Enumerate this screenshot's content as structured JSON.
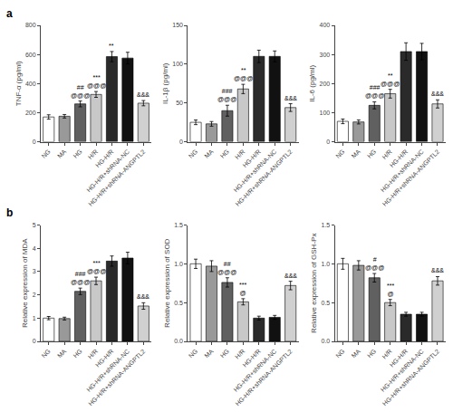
{
  "chart_data": [
    {
      "type": "bar",
      "title": "a",
      "ylabel": "TNF-α (pg/ml)",
      "categories": [
        "NG",
        "MA",
        "HG",
        "H/R",
        "HG-H/R",
        "HG-H/R+shRNA-NC",
        "HG-H/R+shRNA-ANGPTL2"
      ],
      "values": [
        170,
        175,
        260,
        325,
        585,
        575,
        265
      ],
      "errors": [
        15,
        12,
        20,
        20,
        35,
        40,
        18
      ],
      "colors": [
        "#ffffff",
        "#999999",
        "#606060",
        "#c8c8c8",
        "#2a2a2a",
        "#111111",
        "#d0d0d0"
      ],
      "ylim": [
        0,
        800
      ],
      "yticks": [
        0,
        200,
        400,
        600,
        800
      ],
      "grid": false,
      "annotations": [
        {
          "category": "HG",
          "lines": [
            "##",
            "@@@"
          ]
        },
        {
          "category": "H/R",
          "lines": [
            "***",
            "@@@"
          ]
        },
        {
          "category": "HG-H/R",
          "lines": [
            "**"
          ]
        },
        {
          "category": "HG-H/R+shRNA-ANGPTL2",
          "lines": [
            "&&&"
          ]
        }
      ]
    },
    {
      "type": "bar",
      "ylabel": "IL-1β (pg/ml)",
      "categories": [
        "NG",
        "MA",
        "HG",
        "H/R",
        "HG-H/R",
        "HG-H/R+shRNA-NC",
        "HG-H/R+shRNA-ANGPTL2"
      ],
      "values": [
        25,
        23,
        40,
        68,
        110,
        110,
        44
      ],
      "errors": [
        3,
        3,
        7,
        6,
        8,
        7,
        5
      ],
      "colors": [
        "#ffffff",
        "#999999",
        "#606060",
        "#c8c8c8",
        "#2a2a2a",
        "#111111",
        "#d0d0d0"
      ],
      "ylim": [
        0,
        150
      ],
      "yticks": [
        0,
        50,
        100,
        150
      ],
      "grid": false,
      "annotations": [
        {
          "category": "HG",
          "lines": [
            "###",
            "@@@"
          ]
        },
        {
          "category": "H/R",
          "lines": [
            "**",
            "@@@"
          ]
        },
        {
          "category": "HG-H/R+shRNA-ANGPTL2",
          "lines": [
            "&&&"
          ]
        }
      ]
    },
    {
      "type": "bar",
      "ylabel": "IL-6 (pg/ml)",
      "categories": [
        "NG",
        "MA",
        "HG",
        "H/R",
        "HG-H/R",
        "HG-H/R+shRNA-NC",
        "HG-H/R+shRNA-ANGPTL2"
      ],
      "values": [
        70,
        68,
        125,
        165,
        310,
        310,
        130
      ],
      "errors": [
        8,
        7,
        12,
        15,
        30,
        28,
        14
      ],
      "colors": [
        "#ffffff",
        "#999999",
        "#606060",
        "#c8c8c8",
        "#2a2a2a",
        "#111111",
        "#d0d0d0"
      ],
      "ylim": [
        0,
        400
      ],
      "yticks": [
        0,
        100,
        200,
        300,
        400
      ],
      "grid": false,
      "annotations": [
        {
          "category": "HG",
          "lines": [
            "###",
            "@@@"
          ]
        },
        {
          "category": "H/R",
          "lines": [
            "**",
            "@@@"
          ]
        },
        {
          "category": "HG-H/R+shRNA-ANGPTL2",
          "lines": [
            "&&&"
          ]
        }
      ]
    },
    {
      "type": "bar",
      "title": "b",
      "ylabel": "Relative expression of MDA",
      "categories": [
        "NG",
        "MA",
        "HG",
        "H/R",
        "HG-H/R",
        "HG-H/R+shRNA-NC",
        "HG-H/R+shRNA-ANGPTL2"
      ],
      "values": [
        1.0,
        0.98,
        2.15,
        2.6,
        3.45,
        3.58,
        1.52
      ],
      "errors": [
        0.07,
        0.06,
        0.14,
        0.16,
        0.22,
        0.25,
        0.14
      ],
      "colors": [
        "#ffffff",
        "#999999",
        "#606060",
        "#c8c8c8",
        "#2a2a2a",
        "#111111",
        "#d0d0d0"
      ],
      "ylim": [
        0,
        5
      ],
      "yticks": [
        0,
        1,
        2,
        3,
        4,
        5
      ],
      "grid": false,
      "annotations": [
        {
          "category": "HG",
          "lines": [
            "###",
            "@@@"
          ]
        },
        {
          "category": "H/R",
          "lines": [
            "***",
            "@@@"
          ]
        },
        {
          "category": "HG-H/R+shRNA-ANGPTL2",
          "lines": [
            "&&&"
          ]
        }
      ]
    },
    {
      "type": "bar",
      "ylabel": "Relative expression of SOD",
      "categories": [
        "NG",
        "MA",
        "HG",
        "H/R",
        "HG-H/R",
        "HG-H/R+shRNA-NC",
        "HG-H/R+shRNA-ANGPTL2"
      ],
      "values": [
        1.0,
        0.97,
        0.76,
        0.51,
        0.3,
        0.31,
        0.72
      ],
      "errors": [
        0.06,
        0.07,
        0.06,
        0.04,
        0.025,
        0.025,
        0.055
      ],
      "colors": [
        "#ffffff",
        "#999999",
        "#606060",
        "#c8c8c8",
        "#2a2a2a",
        "#111111",
        "#d0d0d0"
      ],
      "ylim": [
        0,
        1.5
      ],
      "yticks": [
        {
          "value": 0,
          "label": "0.0"
        },
        0.5,
        {
          "value": 1,
          "label": "1.0"
        },
        1.5
      ],
      "grid": false,
      "annotations": [
        {
          "category": "HG",
          "lines": [
            "##",
            "@@@"
          ]
        },
        {
          "category": "H/R",
          "lines": [
            "***",
            "@"
          ]
        },
        {
          "category": "HG-H/R+shRNA-ANGPTL2",
          "lines": [
            "&&&"
          ]
        }
      ]
    },
    {
      "type": "bar",
      "ylabel": "Relative expression of GSH-Px",
      "categories": [
        "NG",
        "MA",
        "HG",
        "H/R",
        "HG-H/R",
        "HG-H/R+shRNA-NC",
        "HG-H/R+shRNA-ANGPTL2"
      ],
      "values": [
        1.0,
        0.98,
        0.82,
        0.5,
        0.35,
        0.35,
        0.78
      ],
      "errors": [
        0.07,
        0.06,
        0.055,
        0.04,
        0.025,
        0.025,
        0.055
      ],
      "colors": [
        "#ffffff",
        "#999999",
        "#606060",
        "#c8c8c8",
        "#2a2a2a",
        "#111111",
        "#d0d0d0"
      ],
      "ylim": [
        0,
        1.5
      ],
      "yticks": [
        {
          "value": 0,
          "label": "0.0"
        },
        0.5,
        {
          "value": 1,
          "label": "1.0"
        },
        1.5
      ],
      "grid": false,
      "annotations": [
        {
          "category": "HG",
          "lines": [
            "#",
            "@@@"
          ]
        },
        {
          "category": "H/R",
          "lines": [
            "***",
            "@"
          ]
        },
        {
          "category": "HG-H/R+shRNA-ANGPTL2",
          "lines": [
            "&&&"
          ]
        }
      ]
    }
  ]
}
